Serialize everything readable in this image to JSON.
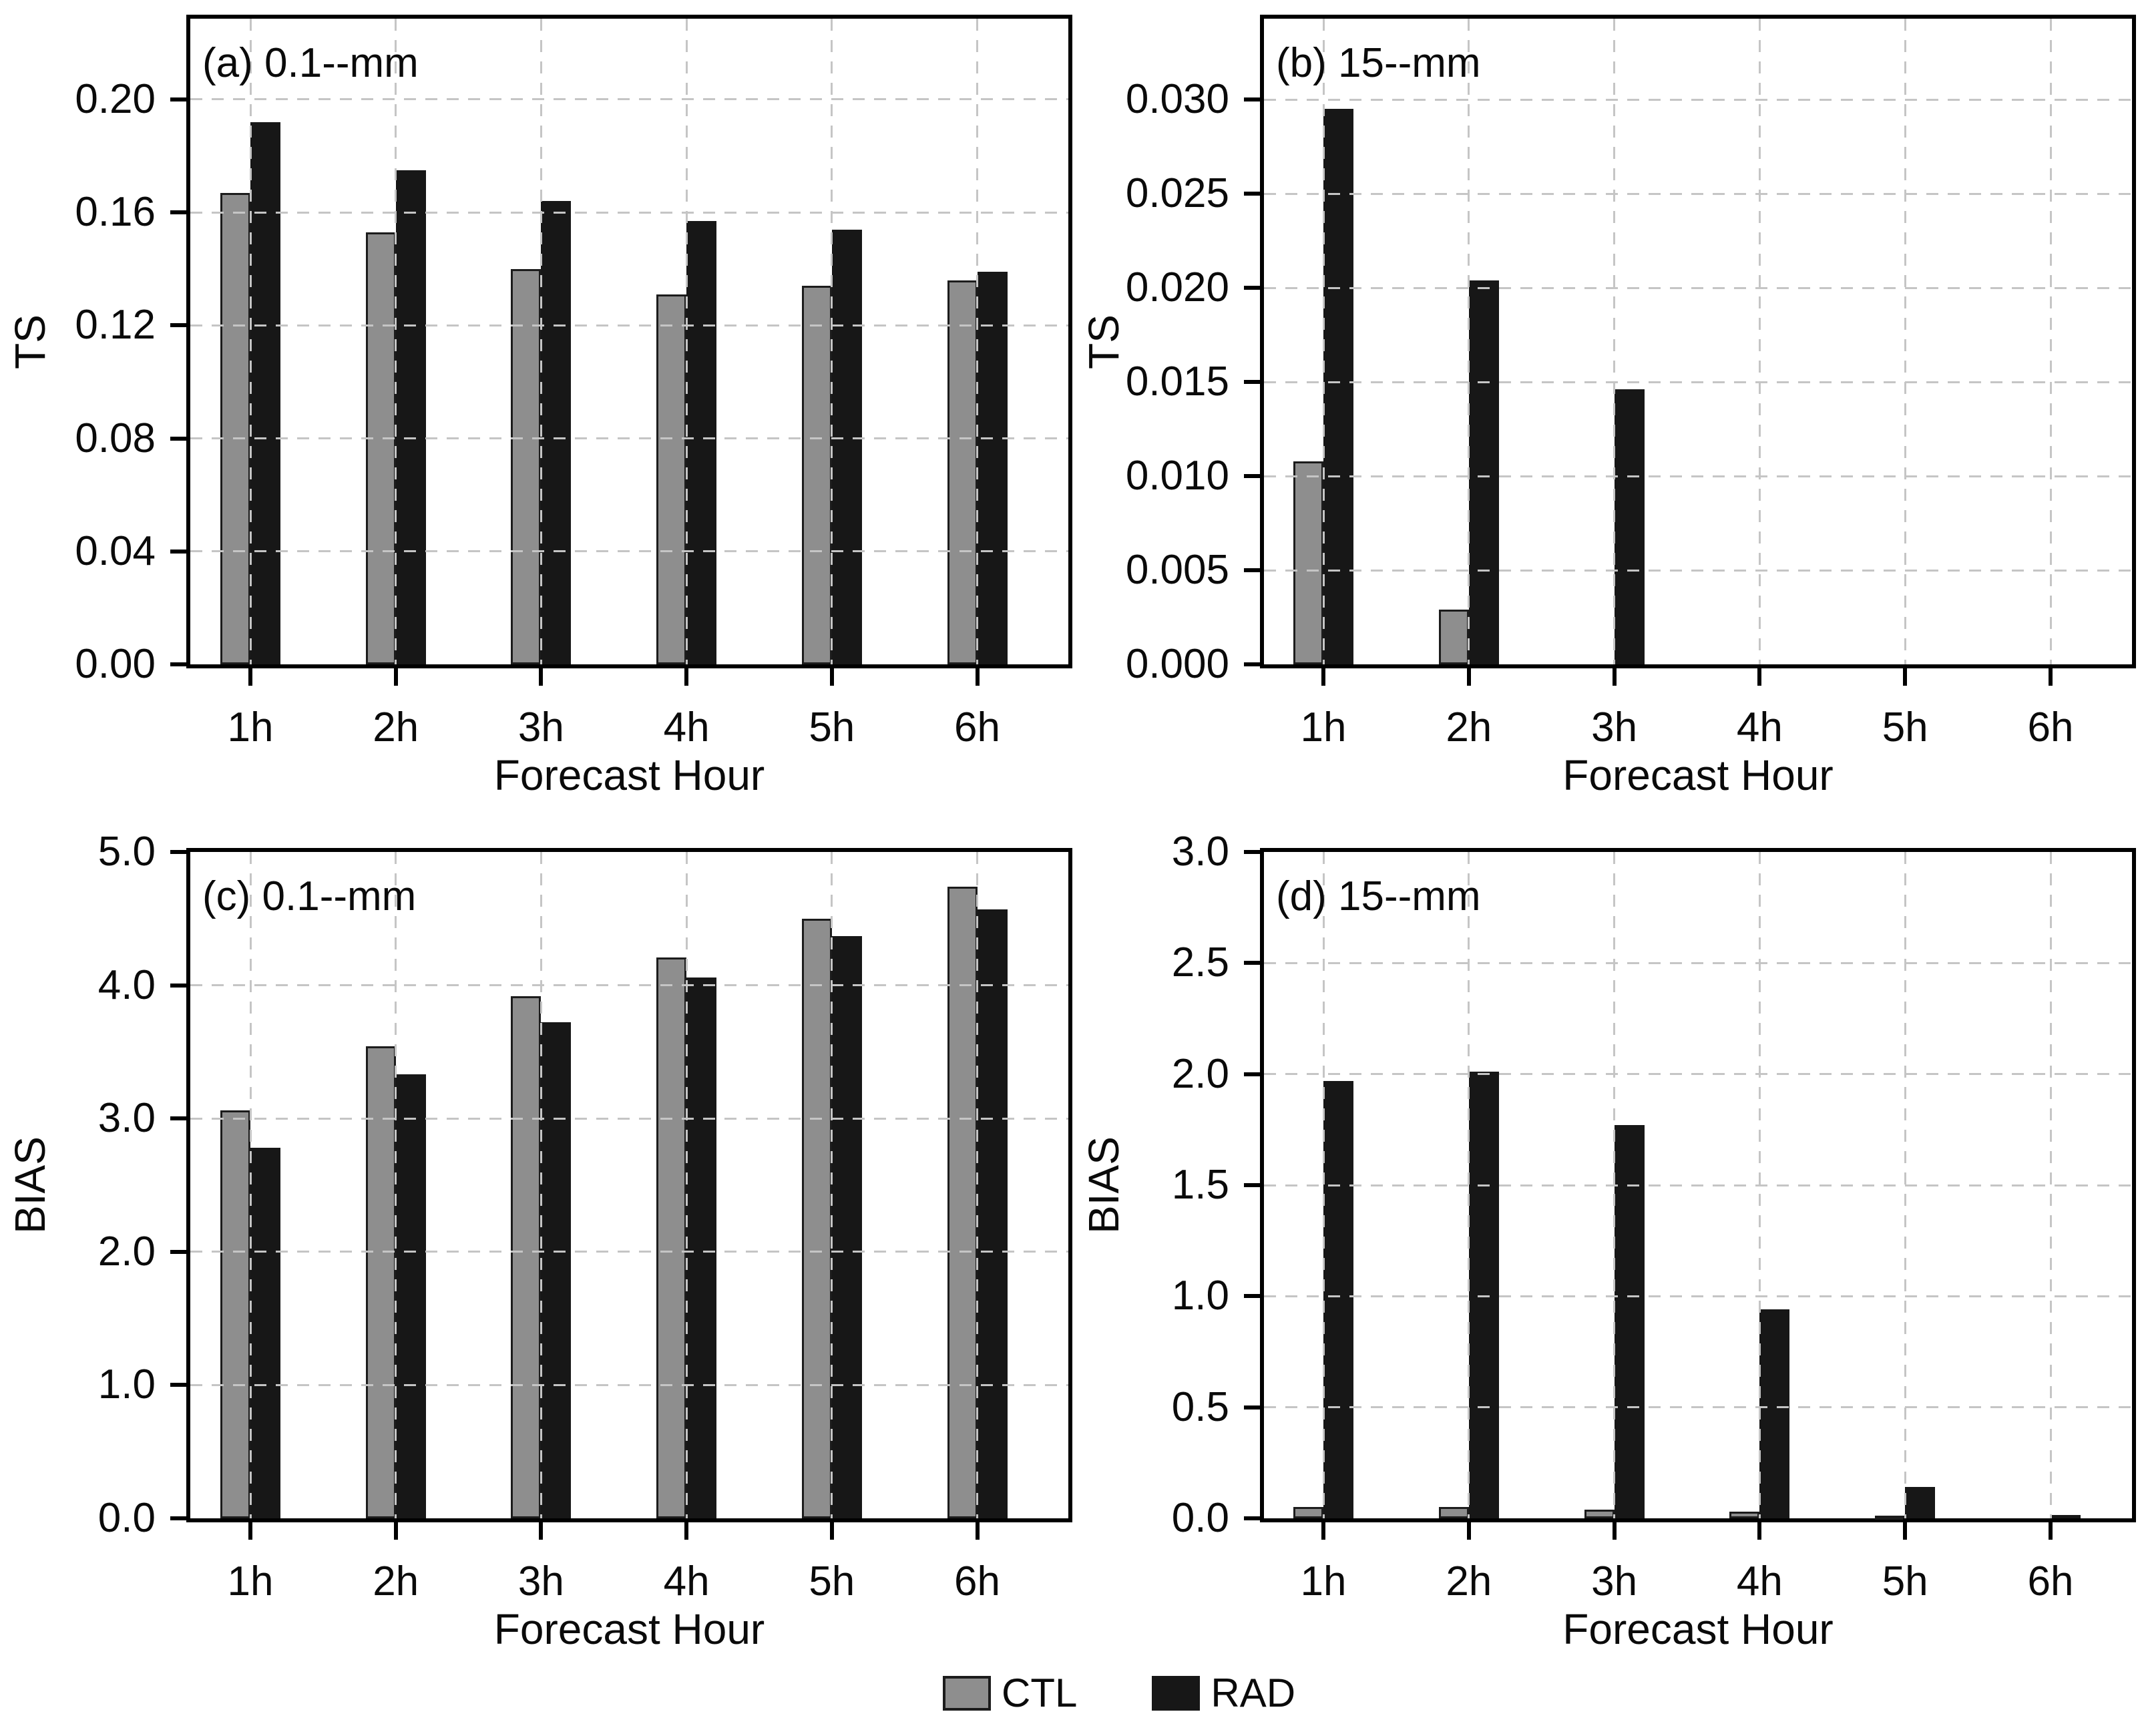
{
  "figure": {
    "background": "#ffffff",
    "text_color": "#0a0a0a",
    "gridline_color": "#c5c5c5",
    "axis_color": "#000000"
  },
  "legend": {
    "position": "bottom-center",
    "items": [
      {
        "label": "CTL",
        "color": "#8e8e8e",
        "border": "#1c1c1c"
      },
      {
        "label": "RAD",
        "color": "#171717",
        "border": "#171717"
      }
    ]
  },
  "chart_data": [
    {
      "id": "a",
      "type": "bar",
      "title": "(a) 0.1--mm",
      "ylabel": "TS",
      "xlabel": "Forecast Hour",
      "grid": "dashed",
      "legend_position": "bottom",
      "categories": [
        "1h",
        "2h",
        "3h",
        "4h",
        "5h",
        "6h"
      ],
      "yticks": {
        "labels": [
          "0.00",
          "0.04",
          "0.08",
          "0.12",
          "0.16",
          "0.20"
        ],
        "values": [
          0,
          0.04,
          0.08,
          0.12,
          0.16,
          0.2
        ]
      },
      "ylim": [
        0,
        0.2286
      ],
      "series": [
        {
          "name": "CTL",
          "values": [
            0.167,
            0.153,
            0.14,
            0.131,
            0.134,
            0.136
          ]
        },
        {
          "name": "RAD",
          "values": [
            0.192,
            0.175,
            0.164,
            0.157,
            0.154,
            0.139
          ]
        }
      ]
    },
    {
      "id": "b",
      "type": "bar",
      "title": "(b) 15--mm",
      "ylabel": "TS",
      "xlabel": "Forecast Hour",
      "grid": "dashed",
      "legend_position": "bottom",
      "categories": [
        "1h",
        "2h",
        "3h",
        "4h",
        "5h",
        "6h"
      ],
      "yticks": {
        "labels": [
          "0.000",
          "0.005",
          "0.010",
          "0.015",
          "0.020",
          "0.025",
          "0.030"
        ],
        "values": [
          0,
          0.005,
          0.01,
          0.015,
          0.02,
          0.025,
          0.03
        ]
      },
      "ylim": [
        0,
        0.0343
      ],
      "series": [
        {
          "name": "CTL",
          "values": [
            0.0108,
            0.0029,
            0,
            0,
            0,
            0
          ]
        },
        {
          "name": "RAD",
          "values": [
            0.0295,
            0.0204,
            0.0146,
            0,
            0,
            0
          ]
        }
      ]
    },
    {
      "id": "c",
      "type": "bar",
      "title": "(c) 0.1--mm",
      "ylabel": "BIAS",
      "xlabel": "Forecast Hour",
      "grid": "dashed",
      "legend_position": "bottom",
      "categories": [
        "1h",
        "2h",
        "3h",
        "4h",
        "5h",
        "6h"
      ],
      "yticks": {
        "labels": [
          "0.0",
          "1.0",
          "2.0",
          "3.0",
          "4.0",
          "5.0"
        ],
        "values": [
          0,
          1.0,
          2.0,
          3.0,
          4.0,
          5.0
        ]
      },
      "ylim": [
        0,
        5.0
      ],
      "series": [
        {
          "name": "CTL",
          "values": [
            3.06,
            3.54,
            3.92,
            4.21,
            4.5,
            4.74
          ]
        },
        {
          "name": "RAD",
          "values": [
            2.78,
            3.33,
            3.72,
            4.06,
            4.37,
            4.57
          ]
        }
      ]
    },
    {
      "id": "d",
      "type": "bar",
      "title": "(d) 15--mm",
      "ylabel": "BIAS",
      "xlabel": "Forecast Hour",
      "grid": "dashed",
      "legend_position": "bottom",
      "categories": [
        "1h",
        "2h",
        "3h",
        "4h",
        "5h",
        "6h"
      ],
      "yticks": {
        "labels": [
          "0.0",
          "0.5",
          "1.0",
          "1.5",
          "2.0",
          "2.5",
          "3.0"
        ],
        "values": [
          0,
          0.5,
          1.0,
          1.5,
          2.0,
          2.5,
          3.0
        ]
      },
      "ylim": [
        0,
        3.0
      ],
      "series": [
        {
          "name": "CTL",
          "values": [
            0.05,
            0.05,
            0.04,
            0.03,
            0.01,
            0
          ]
        },
        {
          "name": "RAD",
          "values": [
            1.97,
            2.01,
            1.77,
            0.94,
            0.14,
            0.015
          ]
        }
      ]
    }
  ]
}
